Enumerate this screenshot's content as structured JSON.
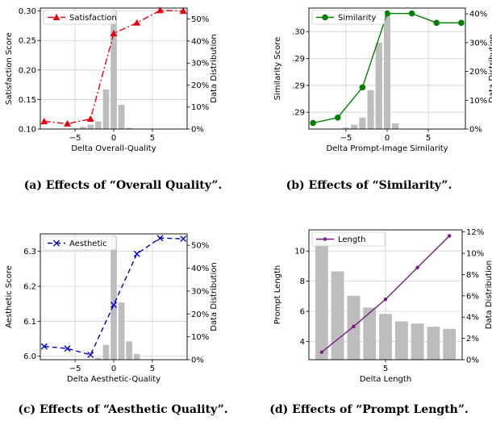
{
  "captions": [
    "(a) Effects of “Overall Quality”.",
    "(b) Effects of “Similarity”.",
    "(c) Effects of “Aesthetic Quality”.",
    "(d) Effects of “Prompt Length”."
  ],
  "chart_data": [
    {
      "type": "line",
      "xlabel": "Delta Overall-Quality",
      "ylabel": "Satisfaction Score",
      "y2label": "Data Distribution",
      "legend_position": "top-left",
      "grid": true,
      "xlim": [
        -9.5,
        9.5
      ],
      "ylim": [
        0.1,
        0.305
      ],
      "y2lim": [
        0,
        55
      ],
      "xticks": [
        -5,
        0,
        5
      ],
      "xtick_labels": [
        "−5",
        "0",
        "5"
      ],
      "yticks": [
        0.1,
        0.15,
        0.2,
        0.25,
        0.3
      ],
      "ytick_labels": [
        "0.10",
        "0.15",
        "0.20",
        "0.25",
        "0.30"
      ],
      "y2ticks": [
        0,
        10,
        20,
        30,
        40,
        50
      ],
      "y2tick_labels": [
        "0%",
        "10%",
        "20%",
        "30%",
        "40%",
        "50%"
      ],
      "series": [
        {
          "name": "Satisfaction",
          "color": "#e8000b",
          "dash": "8,3,2,3",
          "marker": "triangle",
          "x": [
            -9,
            -6,
            -3,
            0,
            3,
            6,
            9
          ],
          "y": [
            0.113,
            0.109,
            0.117,
            0.262,
            0.28,
            0.301,
            0.3
          ]
        }
      ],
      "bars": {
        "color": "#bdbdbd",
        "x": [
          -5,
          -4,
          -3,
          -2,
          -1,
          0,
          1,
          2,
          3
        ],
        "values": [
          0.3,
          1.0,
          2.0,
          3.5,
          18,
          54,
          11,
          0.5,
          0.2
        ]
      }
    },
    {
      "type": "line",
      "xlabel": "Delta Prompt-Image Similarity",
      "ylabel": "Similarity Score",
      "y2label": "Data Distribution",
      "legend_position": "top-left",
      "grid": true,
      "xlim": [
        -9.5,
        9.5
      ],
      "ylim": [
        0.283,
        0.301
      ],
      "y2lim": [
        0,
        42
      ],
      "xticks": [
        -5,
        0,
        5
      ],
      "xtick_labels": [
        "−5",
        "0",
        "5"
      ],
      "yticks": [
        0.2855,
        0.2895,
        0.2935,
        0.2975
      ],
      "ytick_labels": [
        ".29",
        ".29",
        ".29",
        ".30"
      ],
      "y2ticks": [
        0,
        10,
        20,
        30,
        40
      ],
      "y2tick_labels": [
        "0%",
        "10%",
        "20%",
        "30%",
        "40%"
      ],
      "series": [
        {
          "name": "Similarity",
          "color": "#008000",
          "dash": "",
          "marker": "circle",
          "x": [
            -9,
            -6,
            -3,
            0,
            3,
            6,
            9
          ],
          "y": [
            0.2839,
            0.2847,
            0.2892,
            0.3002,
            0.3002,
            0.2988,
            0.2988
          ]
        }
      ],
      "bars": {
        "color": "#bdbdbd",
        "x": [
          -5,
          -4,
          -3,
          -2,
          -1,
          0,
          1
        ],
        "values": [
          0.5,
          1.5,
          4,
          13.5,
          30,
          40,
          2
        ]
      }
    },
    {
      "type": "line",
      "xlabel": "Delta Aesthetic-Quality",
      "ylabel": "Aesthetic Score",
      "y2label": "Data Distribution",
      "legend_position": "top-left",
      "grid": true,
      "xlim": [
        -9.5,
        9.5
      ],
      "ylim": [
        5.99,
        6.35
      ],
      "y2lim": [
        0,
        55
      ],
      "xticks": [
        -5,
        0,
        5
      ],
      "xtick_labels": [
        "−5",
        "0",
        "5"
      ],
      "yticks": [
        6.0,
        6.1,
        6.2,
        6.3
      ],
      "ytick_labels": [
        "6.0",
        "6.1",
        "6.2",
        "6.3"
      ],
      "y2ticks": [
        0,
        10,
        20,
        30,
        40,
        50
      ],
      "y2tick_labels": [
        "0%",
        "10%",
        "20%",
        "30%",
        "40%",
        "50%"
      ],
      "series": [
        {
          "name": "Aesthetic",
          "color": "#0000cc",
          "dash": "6,4",
          "marker": "x",
          "x": [
            -9,
            -6,
            -3,
            0,
            3,
            6,
            9
          ],
          "y": [
            6.028,
            6.022,
            6.004,
            6.147,
            6.293,
            6.338,
            6.336
          ]
        }
      ],
      "bars": {
        "color": "#bdbdbd",
        "x": [
          -2,
          -1,
          0,
          1,
          2,
          3
        ],
        "values": [
          0.8,
          6.5,
          54,
          25,
          8,
          2.5
        ]
      }
    },
    {
      "type": "line",
      "xlabel": "Delta Length",
      "ylabel": "Prompt Length",
      "y2label": "Data Distribution",
      "legend_position": "top-left",
      "grid": true,
      "xlim": [
        0.2,
        9.8
      ],
      "ylim": [
        2.8,
        11.4
      ],
      "y2lim": [
        0,
        12.2
      ],
      "xticks": [
        5
      ],
      "xtick_labels": [
        "5"
      ],
      "yticks": [
        4,
        6,
        8,
        10
      ],
      "ytick_labels": [
        "4",
        "6",
        "8",
        "10"
      ],
      "y2ticks": [
        0,
        2,
        4,
        6,
        8,
        10,
        12
      ],
      "y2tick_labels": [
        "0%",
        "2%",
        "4%",
        "6%",
        "8%",
        "10%",
        "12%"
      ],
      "series": [
        {
          "name": "Length",
          "color": "#7a1a85",
          "dash": "",
          "marker": "dot",
          "x": [
            1,
            3,
            5,
            7,
            9
          ],
          "y": [
            3.3,
            5.0,
            6.8,
            8.9,
            11.0
          ]
        }
      ],
      "bars": {
        "color": "#bdbdbd",
        "x": [
          1,
          2,
          3,
          4,
          5,
          6,
          7,
          8,
          9
        ],
        "values": [
          11.6,
          8.3,
          6.0,
          4.9,
          4.3,
          3.6,
          3.4,
          3.1,
          2.9
        ]
      }
    }
  ]
}
